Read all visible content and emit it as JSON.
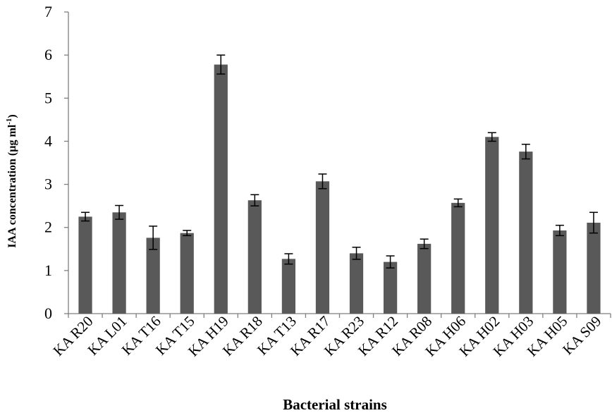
{
  "chart_data": {
    "type": "bar",
    "xlabel": "Bacterial strains",
    "ylabel": "IAA concentration (µg ml",
    "ylabel_superscript": "-1",
    "ylabel_suffix": ")",
    "ylim": [
      0,
      7
    ],
    "yticks": [
      0,
      1,
      2,
      3,
      4,
      5,
      6,
      7
    ],
    "grid": false,
    "legend": "none",
    "bar_color": "#595959",
    "categories": [
      "KA R20",
      "KA L01",
      "KA T16",
      "KA T15",
      "KA H19",
      "KA R18",
      "KA T13",
      "KA R17",
      "KA R23",
      "KA R12",
      "KA R08",
      "KA H06",
      "KA H02",
      "KA H03",
      "KA H05",
      "KA S09"
    ],
    "values": [
      2.25,
      2.35,
      1.76,
      1.87,
      5.78,
      2.63,
      1.27,
      3.07,
      1.4,
      1.2,
      1.62,
      2.57,
      4.1,
      3.76,
      1.93,
      2.11
    ],
    "errors": [
      0.1,
      0.16,
      0.27,
      0.06,
      0.22,
      0.13,
      0.12,
      0.17,
      0.14,
      0.14,
      0.11,
      0.09,
      0.1,
      0.17,
      0.12,
      0.24
    ]
  }
}
